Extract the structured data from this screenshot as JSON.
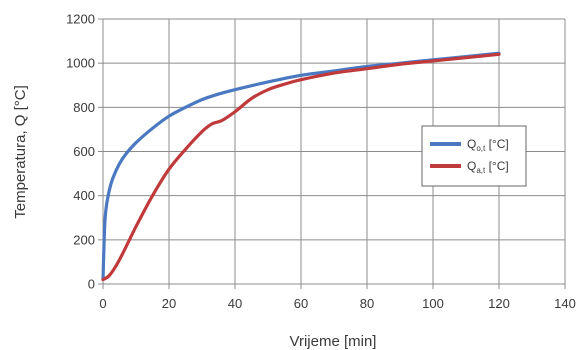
{
  "chart_data": {
    "type": "line",
    "title": "",
    "xlabel": "Vrijeme [min]",
    "ylabel": "Temperatura, Q [°C]",
    "xlim": [
      0,
      140
    ],
    "ylim": [
      0,
      1200
    ],
    "xticks": [
      0,
      20,
      40,
      60,
      80,
      100,
      120,
      140
    ],
    "yticks": [
      0,
      200,
      400,
      600,
      800,
      1000,
      1200
    ],
    "grid": true,
    "legend_position": "right",
    "series": [
      {
        "name": "Q",
        "name_subscript": "o,t",
        "name_suffix": " [°C]",
        "color": "#4a78c1",
        "x": [
          0,
          0.5,
          1,
          2,
          3,
          5,
          7,
          10,
          15,
          20,
          25,
          30,
          35,
          40,
          50,
          60,
          70,
          80,
          90,
          100,
          110,
          120
        ],
        "y": [
          20,
          260,
          350,
          430,
          480,
          545,
          590,
          640,
          705,
          760,
          800,
          835,
          860,
          880,
          915,
          945,
          965,
          985,
          1000,
          1015,
          1030,
          1045
        ]
      },
      {
        "name": "Q",
        "name_subscript": "a,t",
        "name_suffix": " [°C]",
        "color": "#c0393b",
        "x": [
          0,
          2,
          5,
          10,
          15,
          20,
          25,
          30,
          33,
          36,
          40,
          45,
          50,
          55,
          60,
          70,
          80,
          90,
          100,
          110,
          120
        ],
        "y": [
          20,
          40,
          110,
          260,
          400,
          520,
          610,
          690,
          725,
          740,
          780,
          840,
          880,
          905,
          925,
          955,
          975,
          995,
          1010,
          1025,
          1040
        ]
      }
    ]
  }
}
